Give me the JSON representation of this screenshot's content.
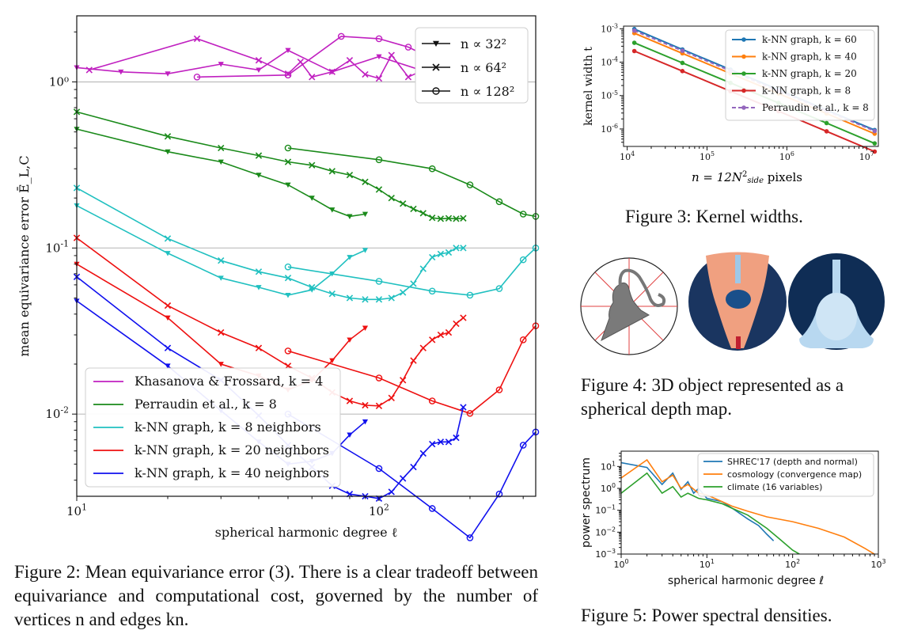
{
  "captions": {
    "fig2": "Figure 2: Mean equivariance error (3). There is a clear tradeoff between equivariance and computational cost, governed by the number of vertices n and edges kn.",
    "fig3": "Figure 3: Kernel widths.",
    "fig4": "Figure 4: 3D object represented as a spherical depth map.",
    "fig5": "Figure 5: Power spectral densities."
  },
  "chart_data": [
    {
      "id": "fig2",
      "type": "line",
      "x_scale": "log",
      "y_scale": "log",
      "xlim": [
        10,
        330
      ],
      "ylim": [
        0.0032,
        2.5
      ],
      "xticks": [
        {
          "v": 10,
          "base": "10",
          "exp": "1"
        },
        {
          "v": 100,
          "base": "10",
          "exp": "2"
        }
      ],
      "yticks": [
        {
          "v": 1,
          "label": "10⁰"
        },
        {
          "v": 0.1,
          "base": "10",
          "exp": "-1"
        },
        {
          "v": 0.01,
          "base": "10",
          "exp": "-2"
        }
      ],
      "xlabel": "spherical harmonic degree ℓ",
      "ylabel": "mean equivariance error Ē_L,C",
      "grid_y": [
        1,
        0.1,
        0.01
      ],
      "marker_legend": [
        {
          "marker": "triangle",
          "label": "n ∝ 32²"
        },
        {
          "marker": "x",
          "label": "n ∝ 64²"
        },
        {
          "marker": "circle",
          "label": "n ∝ 128²"
        }
      ],
      "color_legend": [
        {
          "color": "#c020c0",
          "label": "Khasanova & Frossard, k = 4"
        },
        {
          "color": "#1a8a1a",
          "label": "Perraudin et al., k = 8"
        },
        {
          "color": "#20c0c0",
          "label": "k-NN graph, k = 8 neighbors"
        },
        {
          "color": "#ee1010",
          "label": "k-NN graph, k = 20 neighbors"
        },
        {
          "color": "#1010ee",
          "label": "k-NN graph, k = 40 neighbors"
        }
      ],
      "series": [
        {
          "name": "Khasanova & Frossard, k = 4 (n ∝ 32²)",
          "color": "#c020c0",
          "marker": "triangle",
          "x": [
            10,
            14,
            20,
            30,
            40,
            50,
            70,
            100,
            150,
            200
          ],
          "y": [
            1.22,
            1.15,
            1.12,
            1.28,
            1.18,
            1.55,
            1.15,
            1.42,
            1.12,
            1.22
          ]
        },
        {
          "name": "Khasanova & Frossard, k = 4 (n ∝ 64²)",
          "color": "#c020c0",
          "marker": "x",
          "x": [
            11,
            25,
            40,
            50,
            55,
            60,
            70,
            80,
            90,
            100,
            110,
            125,
            150
          ],
          "y": [
            1.18,
            1.82,
            1.35,
            1.12,
            1.32,
            1.07,
            1.15,
            1.35,
            1.11,
            1.05,
            1.45,
            1.07,
            1.25
          ]
        },
        {
          "name": "Khasanova & Frossard, k = 4 (n ∝ 128²)",
          "color": "#c020c0",
          "marker": "circle",
          "x": [
            25,
            50,
            75,
            100,
            125,
            150,
            200
          ],
          "y": [
            1.07,
            1.1,
            1.88,
            1.82,
            1.62,
            1.38,
            1.55
          ]
        },
        {
          "name": "Perraudin et al., k = 8 (n ∝ 32²)",
          "color": "#1a8a1a",
          "marker": "triangle",
          "x": [
            10,
            20,
            30,
            40,
            50,
            60,
            70,
            80,
            90
          ],
          "y": [
            0.52,
            0.38,
            0.33,
            0.275,
            0.24,
            0.2,
            0.17,
            0.155,
            0.16
          ]
        },
        {
          "name": "Perraudin et al., k = 8 (n ∝ 64²)",
          "color": "#1a8a1a",
          "marker": "x",
          "x": [
            10,
            20,
            30,
            40,
            50,
            60,
            70,
            80,
            90,
            100,
            110,
            120,
            130,
            140,
            150,
            160,
            170,
            180,
            190
          ],
          "y": [
            0.66,
            0.47,
            0.4,
            0.36,
            0.33,
            0.315,
            0.29,
            0.275,
            0.25,
            0.225,
            0.2,
            0.185,
            0.172,
            0.162,
            0.152,
            0.15,
            0.151,
            0.15,
            0.151
          ]
        },
        {
          "name": "Perraudin et al., k = 8 (n ∝ 128²)",
          "color": "#1a8a1a",
          "marker": "circle",
          "x": [
            50,
            100,
            150,
            200,
            250,
            300,
            330
          ],
          "y": [
            0.4,
            0.34,
            0.3,
            0.24,
            0.19,
            0.16,
            0.155
          ]
        },
        {
          "name": "k-NN graph, k = 8 neighbors (n ∝ 32²)",
          "color": "#20c0c0",
          "marker": "triangle",
          "x": [
            10,
            20,
            30,
            40,
            50,
            60,
            70,
            80,
            90
          ],
          "y": [
            0.18,
            0.093,
            0.066,
            0.058,
            0.052,
            0.056,
            0.07,
            0.088,
            0.097
          ]
        },
        {
          "name": "k-NN graph, k = 8 neighbors (n ∝ 64²)",
          "color": "#20c0c0",
          "marker": "x",
          "x": [
            10,
            20,
            30,
            40,
            50,
            60,
            70,
            80,
            90,
            100,
            110,
            120,
            130,
            140,
            150,
            160,
            170,
            180,
            190
          ],
          "y": [
            0.23,
            0.114,
            0.084,
            0.072,
            0.066,
            0.058,
            0.053,
            0.05,
            0.049,
            0.049,
            0.05,
            0.054,
            0.061,
            0.075,
            0.088,
            0.092,
            0.094,
            0.1,
            0.1
          ]
        },
        {
          "name": "k-NN graph, k = 8 neighbors (n ∝ 128²)",
          "color": "#20c0c0",
          "marker": "circle",
          "x": [
            50,
            100,
            150,
            200,
            250,
            300,
            330
          ],
          "y": [
            0.077,
            0.063,
            0.055,
            0.052,
            0.057,
            0.085,
            0.1
          ]
        },
        {
          "name": "k-NN graph, k = 20 neighbors (n ∝ 32²)",
          "color": "#ee1010",
          "marker": "triangle",
          "x": [
            10,
            20,
            30,
            40,
            50,
            60,
            70,
            80,
            90
          ],
          "y": [
            0.08,
            0.038,
            0.02,
            0.017,
            0.014,
            0.016,
            0.021,
            0.028,
            0.033
          ]
        },
        {
          "name": "k-NN graph, k = 20 neighbors (n ∝ 64²)",
          "color": "#ee1010",
          "marker": "x",
          "x": [
            10,
            20,
            30,
            40,
            50,
            60,
            70,
            80,
            90,
            100,
            110,
            120,
            130,
            140,
            150,
            160,
            170,
            180,
            190
          ],
          "y": [
            0.115,
            0.045,
            0.031,
            0.025,
            0.0195,
            0.0165,
            0.0135,
            0.012,
            0.0113,
            0.0112,
            0.0125,
            0.016,
            0.021,
            0.025,
            0.028,
            0.03,
            0.031,
            0.035,
            0.038
          ]
        },
        {
          "name": "k-NN graph, k = 20 neighbors (n ∝ 128²)",
          "color": "#ee1010",
          "marker": "circle",
          "x": [
            50,
            100,
            150,
            200,
            250,
            300,
            330
          ],
          "y": [
            0.024,
            0.0165,
            0.012,
            0.0101,
            0.014,
            0.028,
            0.034
          ]
        },
        {
          "name": "k-NN graph, k = 40 neighbors (n ∝ 32²)",
          "color": "#1010ee",
          "marker": "triangle",
          "x": [
            10,
            20,
            30,
            40,
            50,
            60,
            70,
            80,
            90
          ],
          "y": [
            0.048,
            0.0195,
            0.0105,
            0.0068,
            0.005,
            0.0052,
            0.0058,
            0.0075,
            0.009
          ]
        },
        {
          "name": "k-NN graph, k = 40 neighbors (n ∝ 64²)",
          "color": "#1010ee",
          "marker": "x",
          "x": [
            10,
            20,
            30,
            40,
            50,
            60,
            70,
            80,
            90,
            100,
            110,
            120,
            130,
            140,
            150,
            160,
            170,
            180,
            190
          ],
          "y": [
            0.067,
            0.025,
            0.016,
            0.0098,
            0.0065,
            0.0048,
            0.0037,
            0.0033,
            0.0032,
            0.0031,
            0.0034,
            0.0041,
            0.0048,
            0.0058,
            0.0066,
            0.0068,
            0.0068,
            0.0072,
            0.011
          ]
        },
        {
          "name": "k-NN graph, k = 40 neighbors (n ∝ 128²)",
          "color": "#1010ee",
          "marker": "circle",
          "x": [
            50,
            100,
            150,
            200,
            250,
            300,
            330
          ],
          "y": [
            0.01,
            0.0047,
            0.0027,
            0.0018,
            0.0033,
            0.0065,
            0.0078
          ]
        }
      ]
    },
    {
      "id": "fig3",
      "type": "line",
      "x_scale": "log",
      "y_scale": "log",
      "xlim": [
        9000,
        14000000
      ],
      "ylim": [
        3e-07,
        0.0012
      ],
      "xticks": [
        {
          "v": 10000,
          "base": "10",
          "exp": "4"
        },
        {
          "v": 100000,
          "base": "10",
          "exp": "5"
        },
        {
          "v": 1000000,
          "base": "10",
          "exp": "6"
        },
        {
          "v": 10000000,
          "base": "10",
          "exp": "7"
        }
      ],
      "yticks": [
        {
          "v": 0.001,
          "base": "10",
          "exp": "-3"
        },
        {
          "v": 0.0001,
          "base": "10",
          "exp": "-4"
        },
        {
          "v": 1e-05,
          "base": "10",
          "exp": "-5"
        },
        {
          "v": 1e-06,
          "base": "10",
          "exp": "-6"
        }
      ],
      "xlabel": "n = 12N²side pixels",
      "ylabel": "kernel width t",
      "series": [
        {
          "name": "k-NN graph, k = 60",
          "color": "#1f77b4",
          "dashed": false,
          "x": [
            12288,
            49152,
            196608,
            786432,
            3145728,
            12582912
          ],
          "y": [
            0.00098,
            0.00024,
            6e-05,
            1.5e-05,
            3.7e-06,
            9.3e-07
          ]
        },
        {
          "name": "k-NN graph, k = 40",
          "color": "#ff7f0e",
          "dashed": false,
          "x": [
            12288,
            49152,
            196608,
            786432,
            3145728,
            12582912
          ],
          "y": [
            0.00074,
            0.000184,
            4.6e-05,
            1.15e-05,
            2.9e-06,
            7.2e-07
          ]
        },
        {
          "name": "k-NN graph, k = 20",
          "color": "#2ca02c",
          "dashed": false,
          "x": [
            12288,
            49152,
            196608,
            786432,
            3145728,
            12582912
          ],
          "y": [
            0.00038,
            9.5e-05,
            2.4e-05,
            6e-06,
            1.5e-06,
            3.7e-07
          ]
        },
        {
          "name": "k-NN graph, k = 8",
          "color": "#d62728",
          "dashed": false,
          "x": [
            12288,
            49152,
            196608,
            786432,
            3145728,
            12582912
          ],
          "y": [
            0.000215,
            5.4e-05,
            1.35e-05,
            3.4e-06,
            8.5e-07,
            2.1e-07
          ]
        },
        {
          "name": "Perraudin et al., k = 8",
          "color": "#9467bd",
          "dashed": true,
          "x": [
            12288,
            49152,
            196608,
            786432,
            3145728,
            12582912
          ],
          "y": [
            0.00088,
            0.00022,
            5.5e-05,
            1.38e-05,
            3.5e-06,
            8.7e-07
          ]
        }
      ]
    },
    {
      "id": "fig5",
      "type": "line",
      "x_scale": "log",
      "y_scale": "log",
      "xlim": [
        1,
        1000
      ],
      "ylim": [
        0.001,
        50
      ],
      "xticks": [
        {
          "v": 1,
          "base": "10",
          "exp": "0"
        },
        {
          "v": 10,
          "base": "10",
          "exp": "1"
        },
        {
          "v": 100,
          "base": "10",
          "exp": "2"
        },
        {
          "v": 1000,
          "base": "10",
          "exp": "3"
        }
      ],
      "yticks": [
        {
          "v": 10,
          "base": "10",
          "exp": "1"
        },
        {
          "v": 1,
          "base": "10",
          "exp": "0"
        },
        {
          "v": 0.1,
          "base": "10",
          "exp": "−1"
        },
        {
          "v": 0.01,
          "base": "10",
          "exp": "−2"
        },
        {
          "v": 0.001,
          "base": "10",
          "exp": "−3"
        }
      ],
      "xlabel": "spherical harmonic degree ℓ",
      "ylabel": "power spectrum",
      "series": [
        {
          "name": "SHREC'17 (depth and normal)",
          "color": "#1f77b4",
          "x": [
            1,
            2,
            3,
            4,
            5,
            6,
            7,
            8,
            10,
            12,
            15,
            20,
            30,
            40,
            50,
            60
          ],
          "y": [
            15,
            9,
            1.5,
            5,
            0.9,
            2,
            0.6,
            1.0,
            0.35,
            0.3,
            0.25,
            0.12,
            0.04,
            0.02,
            0.008,
            0.004
          ]
        },
        {
          "name": "cosmology (convergence map)",
          "color": "#ff7f0e",
          "x": [
            1,
            2,
            3,
            4,
            5,
            6,
            8,
            10,
            15,
            20,
            30,
            50,
            100,
            200,
            400,
            700,
            900
          ],
          "y": [
            3,
            20,
            2,
            4,
            1,
            1.5,
            0.6,
            0.5,
            0.25,
            0.15,
            0.09,
            0.05,
            0.03,
            0.015,
            0.006,
            0.0018,
            0.001
          ]
        },
        {
          "name": "climate (16 variables)",
          "color": "#2ca02c",
          "x": [
            1,
            2,
            3,
            4,
            5,
            6,
            8,
            10,
            15,
            20,
            30,
            50,
            70,
            100,
            120
          ],
          "y": [
            0.6,
            5,
            0.6,
            1.2,
            0.4,
            0.6,
            0.35,
            0.3,
            0.2,
            0.12,
            0.06,
            0.015,
            0.005,
            0.0015,
            0.001
          ]
        }
      ]
    }
  ]
}
